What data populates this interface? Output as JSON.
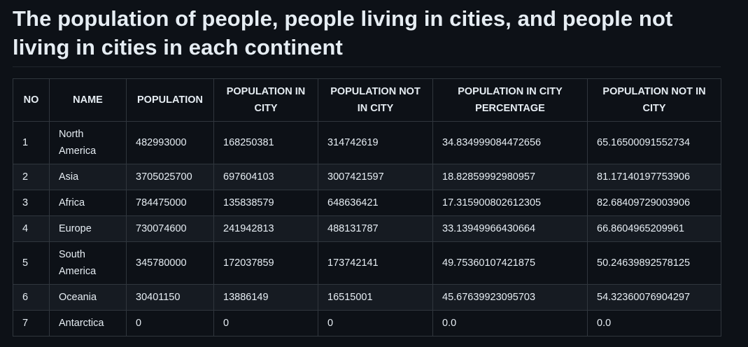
{
  "title": "The population of people, people living in cities, and people not living in cities in each continent",
  "table": {
    "headers": [
      "NO",
      "NAME",
      "POPULATION",
      "POPULATION IN CITY",
      "POPULATION NOT IN CITY",
      "POPULATION IN CITY PERCENTAGE",
      "POPULATION NOT IN CITY"
    ],
    "rows": [
      [
        "1",
        "North America",
        "482993000",
        "168250381",
        "314742619",
        "34.834999084472656",
        "65.16500091552734"
      ],
      [
        "2",
        "Asia",
        "3705025700",
        "697604103",
        "3007421597",
        "18.82859992980957",
        "81.17140197753906"
      ],
      [
        "3",
        "Africa",
        "784475000",
        "135838579",
        "648636421",
        "17.315900802612305",
        "82.68409729003906"
      ],
      [
        "4",
        "Europe",
        "730074600",
        "241942813",
        "488131787",
        "33.13949966430664",
        "66.8604965209961"
      ],
      [
        "5",
        "South America",
        "345780000",
        "172037859",
        "173742141",
        "49.75360107421875",
        "50.24639892578125"
      ],
      [
        "6",
        "Oceania",
        "30401150",
        "13886149",
        "16515001",
        "45.67639923095703",
        "54.32360076904297"
      ],
      [
        "7",
        "Antarctica",
        "0",
        "0",
        "0",
        "0.0",
        "0.0"
      ]
    ]
  }
}
